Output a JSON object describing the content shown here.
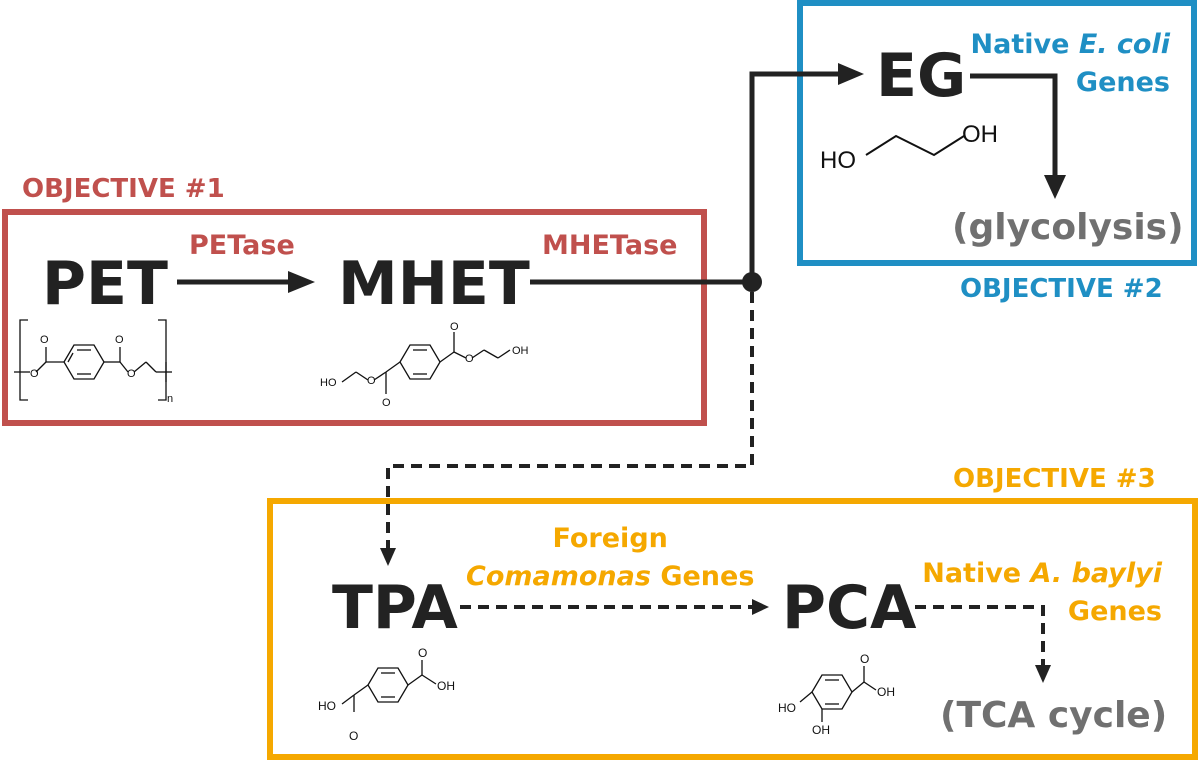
{
  "colors": {
    "objective1": "#c0504d",
    "objective2": "#1f8fc4",
    "objective3": "#f5a800",
    "text_dark": "#222222",
    "text_gray": "#707070"
  },
  "objectives": {
    "o1": "OBJECTIVE #1",
    "o2": "OBJECTIVE #2",
    "o3": "OBJECTIVE #3"
  },
  "compounds": {
    "pet": "PET",
    "mhet": "MHET",
    "eg": "EG",
    "tpa": "TPA",
    "pca": "PCA",
    "glycolysis": "(glycolysis)",
    "tca": "(TCA cycle)"
  },
  "enzymes": {
    "petase": "PETase",
    "mhetase": "MHETase",
    "eg_genes": {
      "line1_pre": "Native ",
      "line1_em": "E. coli",
      "line2": "Genes"
    },
    "tpa_genes": {
      "line1": "Foreign",
      "line2_em": "Comamonas",
      "line2_post": " Genes"
    },
    "pca_genes": {
      "line1_pre": "Native ",
      "line1_em": "A. baylyi",
      "line2": "Genes"
    }
  },
  "structure_labels": {
    "n": "n",
    "o": "O",
    "ho": "HO",
    "oh": "OH"
  }
}
